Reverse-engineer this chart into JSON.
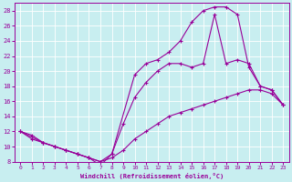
{
  "xlabel": "Windchill (Refroidissement éolien,°C)",
  "bg_color": "#c8eef0",
  "line_color": "#990099",
  "grid_color": "#ffffff",
  "xlim": [
    -0.5,
    23.5
  ],
  "ylim": [
    8,
    29
  ],
  "xticks": [
    0,
    1,
    2,
    3,
    4,
    5,
    6,
    7,
    8,
    9,
    10,
    11,
    12,
    13,
    14,
    15,
    16,
    17,
    18,
    19,
    20,
    21,
    22,
    23
  ],
  "yticks": [
    8,
    10,
    12,
    14,
    16,
    18,
    20,
    22,
    24,
    26,
    28
  ],
  "line1_x": [
    0,
    1,
    2,
    3,
    4,
    5,
    6,
    7,
    8,
    9,
    10,
    11,
    12,
    13,
    14,
    15,
    16,
    17,
    18,
    19,
    20,
    21,
    22,
    23
  ],
  "line1_y": [
    12.0,
    11.0,
    10.5,
    10.0,
    9.5,
    9.0,
    8.5,
    8.0,
    8.5,
    9.5,
    11.0,
    12.0,
    13.0,
    14.0,
    14.5,
    15.0,
    15.5,
    16.0,
    16.5,
    17.0,
    17.5,
    17.5,
    17.0,
    15.5
  ],
  "line2_x": [
    0,
    1,
    2,
    3,
    4,
    5,
    6,
    7,
    8,
    9,
    10,
    11,
    12,
    13,
    14,
    15,
    16,
    17,
    18,
    19,
    20,
    21,
    22,
    23
  ],
  "line2_y": [
    12.0,
    11.5,
    10.5,
    10.0,
    9.5,
    9.0,
    8.5,
    8.0,
    9.0,
    13.0,
    16.5,
    18.5,
    20.0,
    21.0,
    21.0,
    20.5,
    21.0,
    27.5,
    21.0,
    21.5,
    21.0,
    18.0,
    17.5,
    15.5
  ],
  "line3_x": [
    0,
    2,
    3,
    4,
    5,
    6,
    7,
    8,
    10,
    11,
    12,
    13,
    14,
    15,
    16,
    17,
    18,
    19,
    20,
    21,
    22,
    23
  ],
  "line3_y": [
    12.0,
    10.5,
    10.0,
    9.5,
    9.0,
    8.5,
    7.5,
    9.0,
    19.5,
    21.0,
    21.5,
    22.5,
    24.0,
    26.5,
    28.0,
    28.5,
    28.5,
    27.5,
    20.5,
    18.0,
    17.5,
    15.5
  ]
}
